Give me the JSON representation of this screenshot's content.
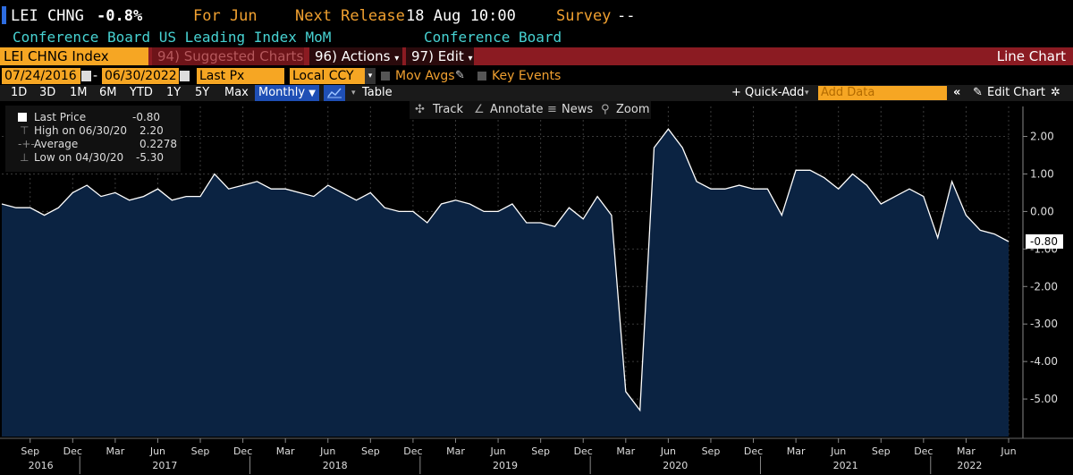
{
  "header": {
    "ticker": "LEI CHNG",
    "last_change": "-0.8%",
    "period": "For Jun",
    "next_release_label": "Next Release",
    "next_release": "18 Aug 10:00",
    "survey_label": "Survey",
    "survey": "--",
    "description": "Conference Board US Leading Index MoM",
    "source": "Conference Board"
  },
  "toolbar": {
    "security": "LEI CHNG Index",
    "suggested": "94) Suggested Charts",
    "actions": "96) Actions",
    "edit": "97) Edit",
    "chart_type": "Line Chart"
  },
  "controls": {
    "start_date": "07/24/2016",
    "end_date": "06/30/2022",
    "field": "Last Px",
    "currency": "Local CCY",
    "mov_avgs": "Mov Avgs",
    "key_events": "Key Events"
  },
  "periods": [
    "1D",
    "3D",
    "1M",
    "6M",
    "YTD",
    "1Y",
    "5Y",
    "Max"
  ],
  "frequency": "Monthly",
  "table_label": "Table",
  "quick_add": "+ Quick-Add",
  "add_data_placeholder": "Add Data",
  "edit_chart": "Edit Chart",
  "chart_tools": {
    "track": "Track",
    "annotate": "Annotate",
    "news": "News",
    "zoom": "Zoom"
  },
  "legend": {
    "last_label": "Last Price",
    "last_value": "-0.80",
    "high_label": "High on 06/30/20",
    "high_value": "2.20",
    "avg_label": "Average",
    "avg_value": "0.2278",
    "low_label": "Low on 04/30/20",
    "low_value": "-5.30"
  },
  "colors": {
    "line": "#ffffff",
    "area": "#0b2342",
    "accent": "#f6a623",
    "brand_red": "#8b1b22"
  },
  "chart_data": {
    "type": "area",
    "ylim": [
      -6.0,
      2.8
    ],
    "y_ticks": [
      2.0,
      1.0,
      0.0,
      -1.0,
      -2.0,
      -3.0,
      -4.0,
      -5.0
    ],
    "y_tick_labels": [
      "2.00",
      "1.00",
      "0.00",
      "-1.00",
      "-2.00",
      "-3.00",
      "-4.00",
      "-5.00"
    ],
    "last_value_label": "-0.80",
    "x_month_labels": [
      "Sep",
      "Dec",
      "Mar",
      "Jun",
      "Sep",
      "Dec",
      "Mar",
      "Jun",
      "Sep",
      "Dec",
      "Mar",
      "Jun",
      "Sep",
      "Dec",
      "Mar",
      "Jun",
      "Sep",
      "Dec",
      "Mar",
      "Jun",
      "Sep",
      "Dec",
      "Mar",
      "Jun"
    ],
    "x_year_labels": [
      "2016",
      "2017",
      "2018",
      "2019",
      "2020",
      "2021",
      "2022"
    ],
    "x": [
      "2016-07",
      "2016-08",
      "2016-09",
      "2016-10",
      "2016-11",
      "2016-12",
      "2017-01",
      "2017-02",
      "2017-03",
      "2017-04",
      "2017-05",
      "2017-06",
      "2017-07",
      "2017-08",
      "2017-09",
      "2017-10",
      "2017-11",
      "2017-12",
      "2018-01",
      "2018-02",
      "2018-03",
      "2018-04",
      "2018-05",
      "2018-06",
      "2018-07",
      "2018-08",
      "2018-09",
      "2018-10",
      "2018-11",
      "2018-12",
      "2019-01",
      "2019-02",
      "2019-03",
      "2019-04",
      "2019-05",
      "2019-06",
      "2019-07",
      "2019-08",
      "2019-09",
      "2019-10",
      "2019-11",
      "2019-12",
      "2020-01",
      "2020-02",
      "2020-03",
      "2020-04",
      "2020-05",
      "2020-06",
      "2020-07",
      "2020-08",
      "2020-09",
      "2020-10",
      "2020-11",
      "2020-12",
      "2021-01",
      "2021-02",
      "2021-03",
      "2021-04",
      "2021-05",
      "2021-06",
      "2021-07",
      "2021-08",
      "2021-09",
      "2021-10",
      "2021-11",
      "2021-12",
      "2022-01",
      "2022-02",
      "2022-03",
      "2022-04",
      "2022-05",
      "2022-06"
    ],
    "values": [
      0.2,
      0.1,
      0.1,
      -0.1,
      0.1,
      0.5,
      0.7,
      0.4,
      0.5,
      0.3,
      0.4,
      0.6,
      0.3,
      0.4,
      0.4,
      1.0,
      0.6,
      0.7,
      0.8,
      0.6,
      0.6,
      0.5,
      0.4,
      0.7,
      0.5,
      0.3,
      0.5,
      0.1,
      0.0,
      0.0,
      -0.3,
      0.2,
      0.3,
      0.2,
      0.0,
      0.0,
      0.2,
      -0.3,
      -0.3,
      -0.4,
      0.1,
      -0.2,
      0.4,
      -0.1,
      -4.8,
      -5.3,
      1.7,
      2.2,
      1.7,
      0.8,
      0.6,
      0.6,
      0.7,
      0.6,
      0.6,
      -0.1,
      1.1,
      1.1,
      0.9,
      0.6,
      1.0,
      0.7,
      0.2,
      0.4,
      0.6,
      0.4,
      -0.7,
      0.8,
      -0.1,
      -0.5,
      -0.6,
      -0.8
    ]
  }
}
